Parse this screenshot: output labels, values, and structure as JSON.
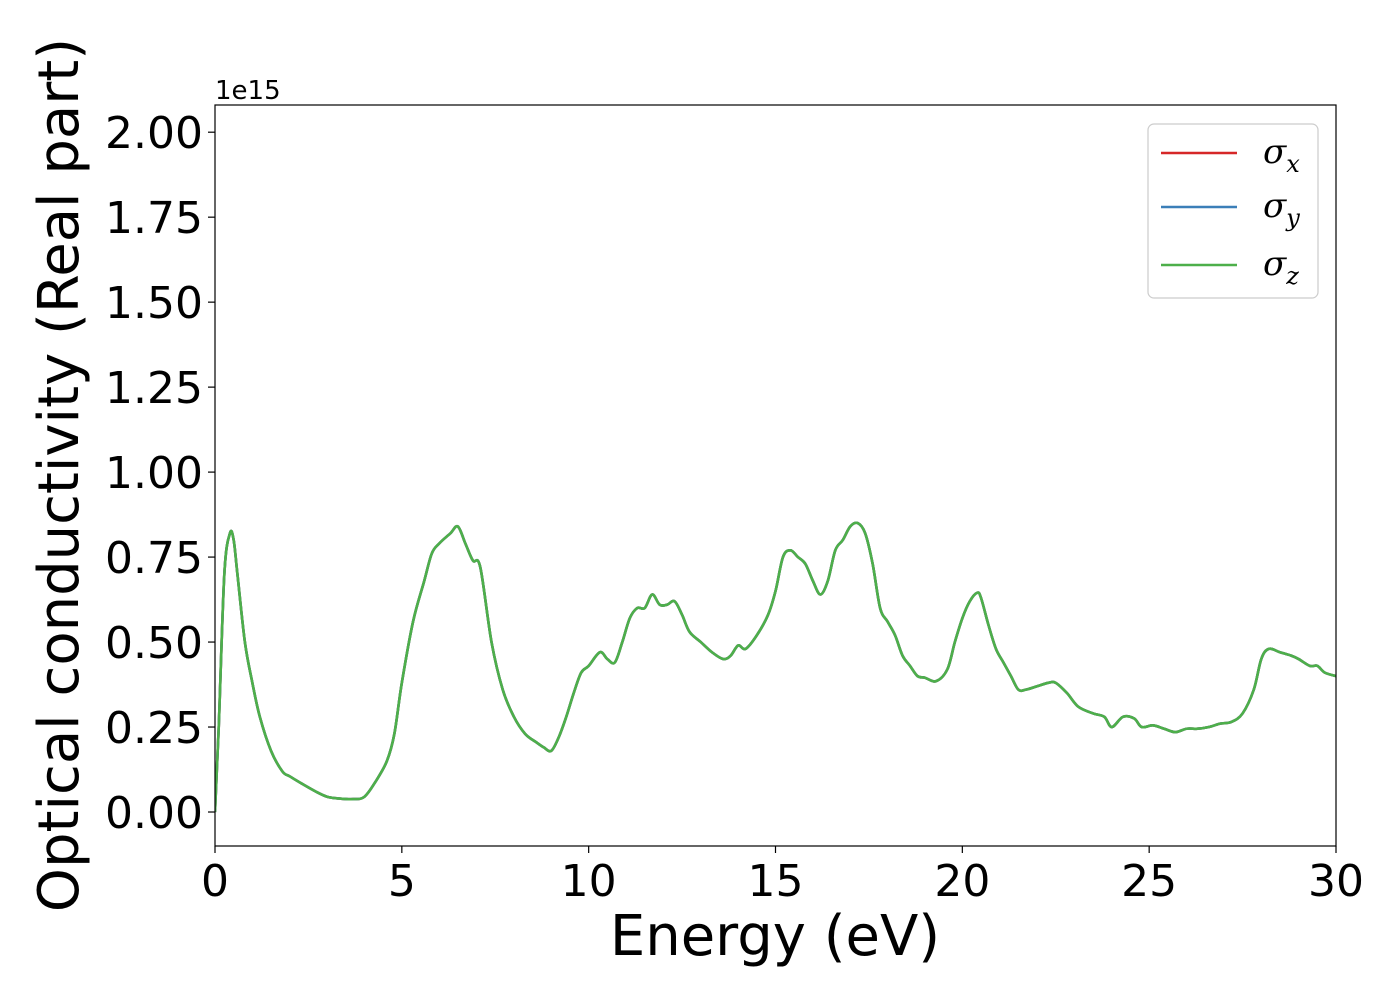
{
  "chart_data": {
    "type": "line",
    "xlabel": "Energy (eV)",
    "ylabel": "Optical conductivity (Real part)",
    "y_scale_label": "1e15",
    "xlim": [
      0,
      30
    ],
    "ylim": [
      -0.1,
      2.08
    ],
    "x_ticks": [
      0,
      5,
      10,
      15,
      20,
      25,
      30
    ],
    "x_tick_labels": [
      "0",
      "5",
      "10",
      "15",
      "20",
      "25",
      "30"
    ],
    "y_ticks": [
      0.0,
      0.25,
      0.5,
      0.75,
      1.0,
      1.25,
      1.5,
      1.75,
      2.0
    ],
    "y_tick_labels": [
      "0.00",
      "0.25",
      "0.50",
      "0.75",
      "1.00",
      "1.25",
      "1.50",
      "1.75",
      "2.00"
    ],
    "grid": false,
    "legend_position": "top-right",
    "series": [
      {
        "name": "σx",
        "symbol": "σ",
        "subscript": "x",
        "color": "#d62728"
      },
      {
        "name": "σy",
        "symbol": "σ",
        "subscript": "y",
        "color": "#3b7fb8"
      },
      {
        "name": "σz",
        "symbol": "σ",
        "subscript": "z",
        "color": "#4daf4a"
      }
    ],
    "x": [
      0,
      0.1,
      0.25,
      0.4,
      0.5,
      0.6,
      0.8,
      1.0,
      1.2,
      1.5,
      1.8,
      2.0,
      2.3,
      2.7,
      3.0,
      3.3,
      3.7,
      4.0,
      4.3,
      4.6,
      4.8,
      5.0,
      5.3,
      5.6,
      5.8,
      6.0,
      6.3,
      6.5,
      6.7,
      6.9,
      7.1,
      7.4,
      7.7,
      8.0,
      8.3,
      8.6,
      8.8,
      9.0,
      9.2,
      9.4,
      9.6,
      9.8,
      10.0,
      10.3,
      10.5,
      10.7,
      10.9,
      11.1,
      11.3,
      11.5,
      11.7,
      11.9,
      12.1,
      12.3,
      12.5,
      12.7,
      13.0,
      13.3,
      13.6,
      13.8,
      14.0,
      14.2,
      14.5,
      14.8,
      15.0,
      15.2,
      15.4,
      15.6,
      15.8,
      16.0,
      16.2,
      16.4,
      16.6,
      16.8,
      17.0,
      17.2,
      17.4,
      17.6,
      17.8,
      18.0,
      18.2,
      18.4,
      18.6,
      18.8,
      19.0,
      19.3,
      19.6,
      19.8,
      20.0,
      20.2,
      20.4,
      20.5,
      20.7,
      20.9,
      21.1,
      21.3,
      21.5,
      21.7,
      22.0,
      22.3,
      22.5,
      22.8,
      23.1,
      23.5,
      23.8,
      24.0,
      24.3,
      24.6,
      24.8,
      25.1,
      25.4,
      25.7,
      26.0,
      26.3,
      26.6,
      26.9,
      27.2,
      27.5,
      27.8,
      28.0,
      28.2,
      28.5,
      28.8,
      29.0,
      29.3,
      29.5,
      29.7,
      30.0
    ],
    "y": [
      0.0,
      0.25,
      0.7,
      0.82,
      0.8,
      0.7,
      0.5,
      0.38,
      0.28,
      0.18,
      0.12,
      0.105,
      0.085,
      0.06,
      0.045,
      0.04,
      0.038,
      0.045,
      0.09,
      0.15,
      0.23,
      0.38,
      0.56,
      0.68,
      0.76,
      0.79,
      0.82,
      0.84,
      0.79,
      0.74,
      0.72,
      0.5,
      0.36,
      0.28,
      0.23,
      0.205,
      0.19,
      0.18,
      0.22,
      0.28,
      0.35,
      0.41,
      0.43,
      0.47,
      0.45,
      0.44,
      0.5,
      0.57,
      0.6,
      0.6,
      0.64,
      0.61,
      0.61,
      0.62,
      0.58,
      0.53,
      0.5,
      0.47,
      0.45,
      0.46,
      0.49,
      0.48,
      0.52,
      0.58,
      0.65,
      0.75,
      0.77,
      0.75,
      0.73,
      0.68,
      0.64,
      0.68,
      0.77,
      0.8,
      0.84,
      0.85,
      0.82,
      0.73,
      0.6,
      0.56,
      0.52,
      0.46,
      0.43,
      0.4,
      0.395,
      0.385,
      0.42,
      0.5,
      0.57,
      0.62,
      0.645,
      0.63,
      0.55,
      0.48,
      0.44,
      0.4,
      0.36,
      0.36,
      0.37,
      0.38,
      0.38,
      0.35,
      0.31,
      0.29,
      0.28,
      0.25,
      0.28,
      0.275,
      0.25,
      0.255,
      0.245,
      0.235,
      0.245,
      0.245,
      0.25,
      0.26,
      0.265,
      0.29,
      0.36,
      0.45,
      0.48,
      0.47,
      0.46,
      0.45,
      0.43,
      0.43,
      0.41,
      0.4
    ]
  }
}
